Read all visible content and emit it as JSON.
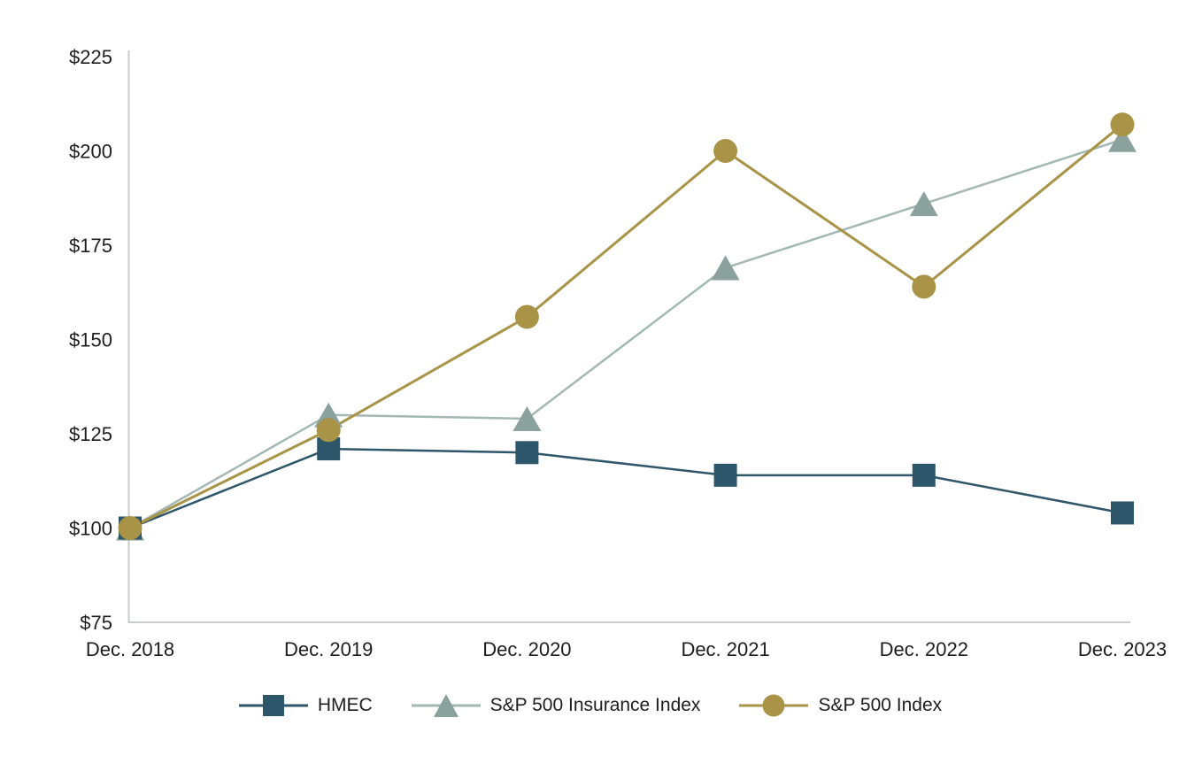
{
  "page": {
    "background_color": "#ffffff",
    "text_color": "#1e1e1e",
    "axis_color": "#c9cccb"
  },
  "chart_data": {
    "type": "line",
    "title": "",
    "xlabel": "",
    "ylabel": "",
    "x_labels": [
      "Dec. 2018",
      "Dec. 2019",
      "Dec. 2020",
      "Dec. 2021",
      "Dec. 2022",
      "Dec. 2023"
    ],
    "y_tick_labels": [
      "$225",
      "$200",
      "$175",
      "$150",
      "$125",
      "$100",
      "$75"
    ],
    "y_tick_values": [
      225,
      200,
      175,
      150,
      125,
      100,
      75
    ],
    "ylim": [
      75,
      225
    ],
    "grid": false,
    "legend_position": "bottom",
    "series": [
      {
        "name": "HMEC",
        "marker": "square",
        "marker_color": "#2e566a",
        "line_color": "#2e566a",
        "values": [
          100,
          121,
          120,
          114,
          114,
          104
        ]
      },
      {
        "name": "S&P 500 Insurance Index",
        "marker": "triangle",
        "marker_color": "#8ba19e",
        "line_color": "#a3b8b5",
        "values": [
          100,
          130,
          129,
          169,
          186,
          203
        ]
      },
      {
        "name": "S&P 500 Index",
        "marker": "circle",
        "marker_color": "#a99347",
        "line_color": "#a99347",
        "values": [
          100,
          126,
          156,
          200,
          164,
          207
        ]
      }
    ]
  }
}
